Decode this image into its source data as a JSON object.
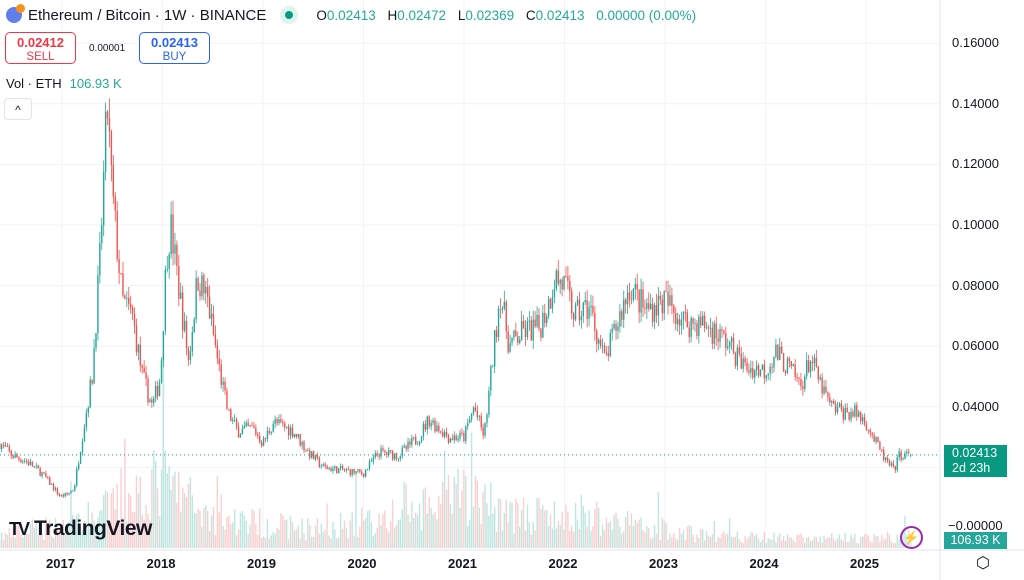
{
  "header": {
    "title": "Ethereum / Bitcoin · 1W · BINANCE",
    "ohlc": [
      {
        "k": "O",
        "v": "0.02413"
      },
      {
        "k": "H",
        "v": "0.02472"
      },
      {
        "k": "L",
        "v": "0.02369"
      },
      {
        "k": "C",
        "v": "0.02413"
      }
    ],
    "change": "0.00000 (0.00%)"
  },
  "trade": {
    "sell_price": "0.02412",
    "sell_label": "SELL",
    "spread": "0.00001",
    "buy_price": "0.02413",
    "buy_label": "BUY"
  },
  "volume": {
    "label": "Vol · ETH",
    "value": "106.93 K"
  },
  "collapse_icon": "^",
  "price_label": {
    "price": "0.02413",
    "countdown": "2d 23h"
  },
  "volume_label": "106.93 K",
  "zero_label": "−0.00000",
  "logo": {
    "mark": "TV",
    "text": "TradingView"
  },
  "icons": {
    "bolt": "⚡",
    "settings": "⬡"
  },
  "colors": {
    "up": "#089981",
    "down": "#f23645",
    "up_candle": "#26a69a",
    "down_candle": "#ef5350"
  },
  "chart_data": {
    "type": "candlestick",
    "title": "Ethereum / Bitcoin · 1W · BINANCE",
    "interval": "1W",
    "yticks": [
      "0.16000",
      "0.14000",
      "0.12000",
      "0.10000",
      "0.08000",
      "0.06000",
      "0.04000"
    ],
    "ylim": [
      0,
      0.17
    ],
    "xticks": [
      "2017",
      "2018",
      "2019",
      "2020",
      "2021",
      "2022",
      "2023",
      "2024",
      "2025"
    ],
    "last_price": 0.02413,
    "close_anchors": [
      [
        2016.38,
        0.028
      ],
      [
        2016.5,
        0.024
      ],
      [
        2016.65,
        0.022
      ],
      [
        2016.8,
        0.018
      ],
      [
        2016.9,
        0.014
      ],
      [
        2016.98,
        0.0105
      ],
      [
        2017.05,
        0.011
      ],
      [
        2017.12,
        0.013
      ],
      [
        2017.2,
        0.03
      ],
      [
        2017.3,
        0.05
      ],
      [
        2017.38,
        0.09
      ],
      [
        2017.45,
        0.14
      ],
      [
        2017.5,
        0.11
      ],
      [
        2017.6,
        0.075
      ],
      [
        2017.7,
        0.07
      ],
      [
        2017.8,
        0.05
      ],
      [
        2017.9,
        0.04
      ],
      [
        2017.98,
        0.05
      ],
      [
        2018.04,
        0.09
      ],
      [
        2018.08,
        0.1
      ],
      [
        2018.12,
        0.09
      ],
      [
        2018.2,
        0.07
      ],
      [
        2018.26,
        0.055
      ],
      [
        2018.35,
        0.083
      ],
      [
        2018.45,
        0.075
      ],
      [
        2018.55,
        0.055
      ],
      [
        2018.65,
        0.038
      ],
      [
        2018.75,
        0.032
      ],
      [
        2018.9,
        0.033
      ],
      [
        2019.0,
        0.028
      ],
      [
        2019.1,
        0.035
      ],
      [
        2019.3,
        0.032
      ],
      [
        2019.45,
        0.025
      ],
      [
        2019.6,
        0.02
      ],
      [
        2019.8,
        0.019
      ],
      [
        2020.0,
        0.018
      ],
      [
        2020.15,
        0.025
      ],
      [
        2020.35,
        0.024
      ],
      [
        2020.55,
        0.03
      ],
      [
        2020.65,
        0.036
      ],
      [
        2020.85,
        0.03
      ],
      [
        2021.0,
        0.03
      ],
      [
        2021.1,
        0.04
      ],
      [
        2021.2,
        0.03
      ],
      [
        2021.3,
        0.06
      ],
      [
        2021.36,
        0.078
      ],
      [
        2021.45,
        0.06
      ],
      [
        2021.6,
        0.065
      ],
      [
        2021.75,
        0.066
      ],
      [
        2021.85,
        0.075
      ],
      [
        2021.9,
        0.083
      ],
      [
        2022.0,
        0.08
      ],
      [
        2022.1,
        0.07
      ],
      [
        2022.25,
        0.073
      ],
      [
        2022.4,
        0.055
      ],
      [
        2022.45,
        0.06
      ],
      [
        2022.55,
        0.07
      ],
      [
        2022.65,
        0.08
      ],
      [
        2022.8,
        0.072
      ],
      [
        2023.0,
        0.075
      ],
      [
        2023.2,
        0.068
      ],
      [
        2023.4,
        0.067
      ],
      [
        2023.6,
        0.062
      ],
      [
        2023.8,
        0.053
      ],
      [
        2024.0,
        0.052
      ],
      [
        2024.1,
        0.058
      ],
      [
        2024.25,
        0.052
      ],
      [
        2024.35,
        0.047
      ],
      [
        2024.45,
        0.056
      ],
      [
        2024.55,
        0.047
      ],
      [
        2024.65,
        0.04
      ],
      [
        2024.8,
        0.038
      ],
      [
        2024.9,
        0.038
      ],
      [
        2025.0,
        0.035
      ],
      [
        2025.1,
        0.028
      ],
      [
        2025.2,
        0.022
      ],
      [
        2025.28,
        0.019
      ],
      [
        2025.33,
        0.024
      ],
      [
        2025.4,
        0.024
      ],
      [
        2025.45,
        0.02413
      ]
    ],
    "volume_level": [
      [
        2016.38,
        0.15
      ],
      [
        2017.3,
        0.4
      ],
      [
        2018.0,
        0.9
      ],
      [
        2018.5,
        0.4
      ],
      [
        2019.5,
        0.25
      ],
      [
        2020.5,
        0.45
      ],
      [
        2021.0,
        0.7
      ],
      [
        2021.5,
        0.45
      ],
      [
        2022.5,
        0.35
      ],
      [
        2023.5,
        0.15
      ],
      [
        2024.5,
        0.12
      ],
      [
        2025.45,
        0.15
      ]
    ]
  }
}
